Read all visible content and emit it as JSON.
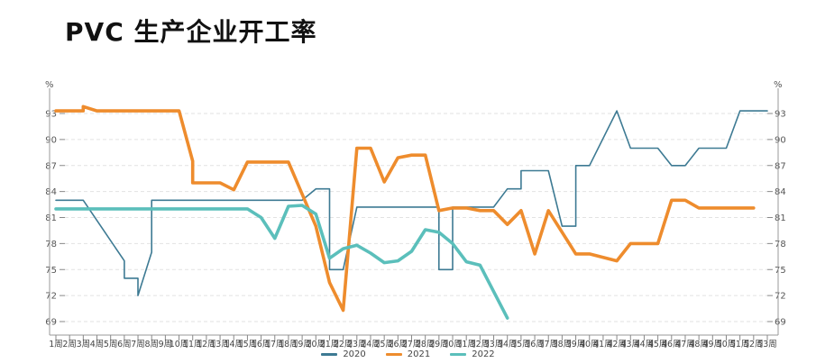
{
  "title": "PVC 生产企业开工率",
  "chart_data": {
    "type": "line",
    "title": "PVC 生产企业开工率",
    "xlabel": "",
    "ylabel": "%",
    "ylabel_right": "%",
    "ylim": [
      68,
      95
    ],
    "yticks": [
      69,
      72,
      75,
      78,
      81,
      84,
      87,
      90,
      93
    ],
    "grid": "horizontal dashed",
    "legend_position": "bottom",
    "x": [
      "1周",
      "2周",
      "3周",
      "4周",
      "5周",
      "6周",
      "7周",
      "8周",
      "9周",
      "10周",
      "11周",
      "12周",
      "13周",
      "14周",
      "15周",
      "16周",
      "17周",
      "18周",
      "19周",
      "20周",
      "21周",
      "22周",
      "23周",
      "24周",
      "25周",
      "26周",
      "27周",
      "28周",
      "29周",
      "30周",
      "31周",
      "32周",
      "33周",
      "34周",
      "35周",
      "36周",
      "37周",
      "38周",
      "39周",
      "40周",
      "41周",
      "42周",
      "43周",
      "44周",
      "45周",
      "46周",
      "47周",
      "48周",
      "49周",
      "50周",
      "51周",
      "52周",
      "53周"
    ],
    "series": [
      {
        "name": "2020",
        "color": "#3d7a93",
        "points": [
          [
            1,
            83
          ],
          [
            3,
            83
          ],
          [
            6,
            76
          ],
          [
            6,
            74
          ],
          [
            7,
            74
          ],
          [
            7,
            72
          ],
          [
            8,
            77
          ],
          [
            8,
            83
          ],
          [
            19,
            83
          ],
          [
            20,
            84.3
          ],
          [
            21,
            84.3
          ],
          [
            21,
            75
          ],
          [
            22,
            75
          ],
          [
            23,
            82.2
          ],
          [
            29,
            82.2
          ],
          [
            29,
            75
          ],
          [
            30,
            75
          ],
          [
            30,
            82.2
          ],
          [
            33,
            82.2
          ],
          [
            33,
            82.2
          ],
          [
            34,
            84.3
          ],
          [
            35,
            84.3
          ],
          [
            35,
            86.4
          ],
          [
            37,
            86.4
          ],
          [
            38,
            80
          ],
          [
            39,
            80
          ],
          [
            39,
            87
          ],
          [
            40,
            87
          ],
          [
            42,
            93.3
          ],
          [
            43,
            89
          ],
          [
            45,
            89
          ],
          [
            46,
            87
          ],
          [
            47,
            87
          ],
          [
            48,
            89
          ],
          [
            50,
            89
          ],
          [
            51,
            93.3
          ],
          [
            53,
            93.3
          ]
        ]
      },
      {
        "name": "2021",
        "color": "#ee8c2d",
        "points": [
          [
            1,
            93.3
          ],
          [
            3,
            93.3
          ],
          [
            3,
            93.8
          ],
          [
            4,
            93.3
          ],
          [
            10,
            93.3
          ],
          [
            11,
            87.5
          ],
          [
            11,
            85
          ],
          [
            13,
            85
          ],
          [
            14,
            84.2
          ],
          [
            15,
            87.4
          ],
          [
            18,
            87.4
          ],
          [
            20,
            80
          ],
          [
            21,
            73.5
          ],
          [
            22,
            70.3
          ],
          [
            23,
            89
          ],
          [
            24,
            89
          ],
          [
            25,
            85.1
          ],
          [
            26,
            87.9
          ],
          [
            27,
            88.2
          ],
          [
            28,
            88.2
          ],
          [
            29,
            81.8
          ],
          [
            30,
            82.1
          ],
          [
            31,
            82.1
          ],
          [
            32,
            81.8
          ],
          [
            33,
            81.8
          ],
          [
            34,
            80.2
          ],
          [
            35,
            81.8
          ],
          [
            36,
            76.8
          ],
          [
            37,
            81.8
          ],
          [
            39,
            76.8
          ],
          [
            40,
            76.8
          ],
          [
            42,
            76
          ],
          [
            43,
            78
          ],
          [
            45,
            78
          ],
          [
            46,
            83
          ],
          [
            47,
            83
          ],
          [
            48,
            82.1
          ],
          [
            52,
            82.1
          ]
        ]
      },
      {
        "name": "2022",
        "color": "#5bbfbb",
        "points": [
          [
            1,
            82
          ],
          [
            15,
            82
          ],
          [
            16,
            81
          ],
          [
            17,
            78.6
          ],
          [
            18,
            82.3
          ],
          [
            19,
            82.4
          ],
          [
            20,
            81.4
          ],
          [
            21,
            76.3
          ],
          [
            22,
            77.4
          ],
          [
            23,
            77.8
          ],
          [
            24,
            76.9
          ],
          [
            25,
            75.8
          ],
          [
            26,
            76
          ],
          [
            27,
            77.1
          ],
          [
            28,
            79.6
          ],
          [
            29,
            79.3
          ],
          [
            30,
            78
          ],
          [
            31,
            75.9
          ],
          [
            32,
            75.5
          ],
          [
            34,
            69.4
          ]
        ]
      }
    ]
  },
  "legend": [
    {
      "label": "2020",
      "color": "#3d7a93"
    },
    {
      "label": "2021",
      "color": "#ee8c2d"
    },
    {
      "label": "2022",
      "color": "#5bbfbb"
    }
  ],
  "axis": {
    "unit_left": "%",
    "unit_right": "%"
  }
}
